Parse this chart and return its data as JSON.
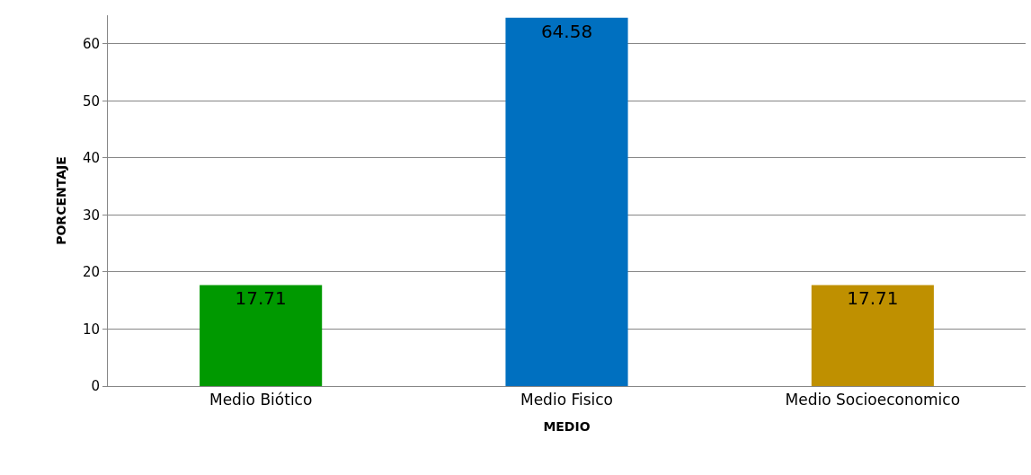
{
  "chart_data": {
    "type": "bar",
    "xlabel": "MEDIO",
    "ylabel": "PORCENTAJE",
    "categories": [
      "Medio Biótico",
      "Medio Fisico",
      "Medio Socioeconomico"
    ],
    "values": [
      17.71,
      64.58,
      17.71
    ],
    "colors": [
      "#009900",
      "#0070c0",
      "#bf9000"
    ],
    "ylim": [
      0,
      65
    ],
    "yticks": [
      0,
      10,
      20,
      30,
      40,
      50,
      60
    ],
    "grid": "y",
    "data_labels": true,
    "legend": false
  }
}
